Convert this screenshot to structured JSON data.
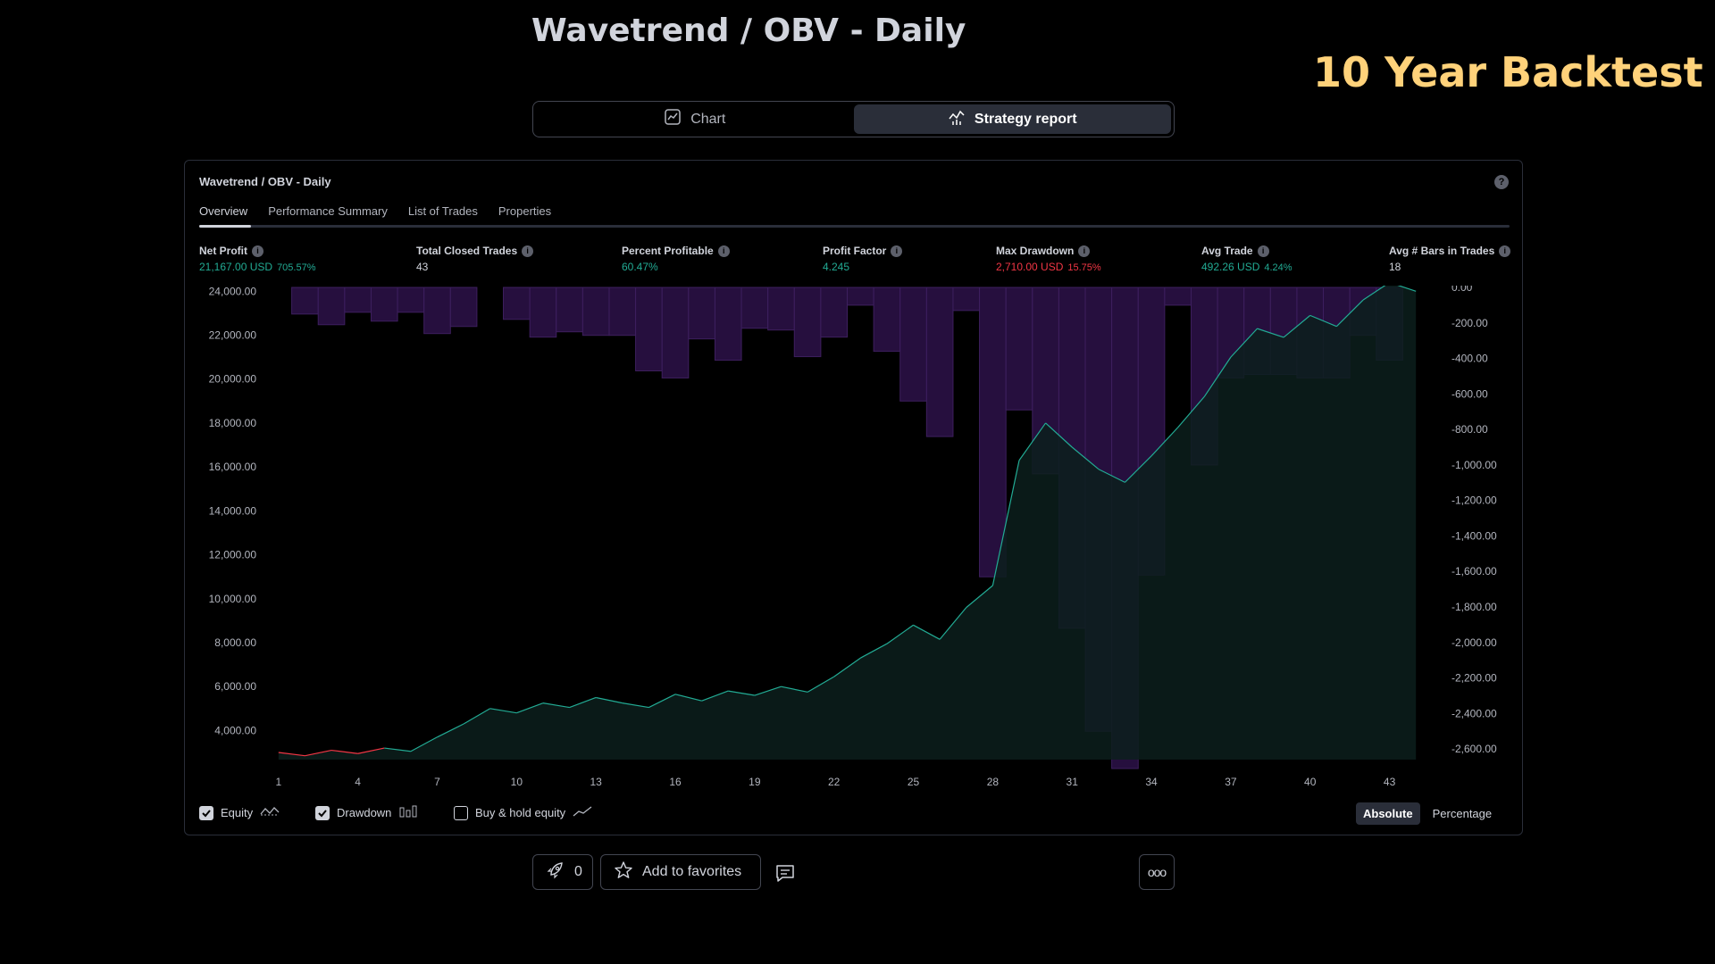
{
  "header": {
    "title": "Wavetrend / OBV - Daily",
    "badge": "10 Year Backtest"
  },
  "view_tabs": [
    {
      "label": "Chart",
      "active": false,
      "icon": "chart-icon"
    },
    {
      "label": "Strategy report",
      "active": true,
      "icon": "strategy-report-icon"
    }
  ],
  "panel": {
    "title": "Wavetrend / OBV - Daily",
    "help_icon": "?",
    "sub_tabs": [
      {
        "label": "Overview",
        "active": true
      },
      {
        "label": "Performance Summary",
        "active": false
      },
      {
        "label": "List of Trades",
        "active": false
      },
      {
        "label": "Properties",
        "active": false
      }
    ],
    "metrics": [
      {
        "label": "Net Profit",
        "value": "21,167.00 USD",
        "pct": "705.57%",
        "color": "green"
      },
      {
        "label": "Total Closed Trades",
        "value": "43",
        "pct": "",
        "color": "white"
      },
      {
        "label": "Percent Profitable",
        "value": "60.47%",
        "pct": "",
        "color": "green"
      },
      {
        "label": "Profit Factor",
        "value": "4.245",
        "pct": "",
        "color": "green"
      },
      {
        "label": "Max Drawdown",
        "value": "2,710.00 USD",
        "pct": "15.75%",
        "color": "red"
      },
      {
        "label": "Avg Trade",
        "value": "492.26 USD",
        "pct": "4.24%",
        "color": "green"
      },
      {
        "label": "Avg # Bars in Trades",
        "value": "18",
        "pct": "",
        "color": "white"
      }
    ],
    "legend": [
      {
        "label": "Equity",
        "checked": true,
        "icon": "equity-line-icon"
      },
      {
        "label": "Drawdown",
        "checked": true,
        "icon": "drawdown-bars-icon"
      },
      {
        "label": "Buy & hold equity",
        "checked": false,
        "icon": "buy-hold-line-icon"
      }
    ],
    "mode": {
      "absolute": "Absolute",
      "percentage": "Percentage",
      "active": "absolute"
    }
  },
  "actions": {
    "boost_count": "0",
    "favorites_label": "Add to favorites",
    "more_label": "ooo"
  },
  "colors": {
    "equity_line": "#22ab94",
    "equity_fill": "#0c1f1c",
    "drawdown_bar": "#2a1145",
    "drawdown_border": "#3d1f5e",
    "loss_segment": "#f23645",
    "badge": "#ffd27a"
  },
  "chart_data": {
    "type": "area",
    "x": [
      1,
      2,
      3,
      4,
      5,
      6,
      7,
      8,
      9,
      10,
      11,
      12,
      13,
      14,
      15,
      16,
      17,
      18,
      19,
      20,
      21,
      22,
      23,
      24,
      25,
      26,
      27,
      28,
      29,
      30,
      31,
      32,
      33,
      34,
      35,
      36,
      37,
      38,
      39,
      40,
      41,
      42,
      43,
      44
    ],
    "x_ticks": [
      "1",
      "4",
      "7",
      "10",
      "13",
      "16",
      "19",
      "22",
      "25",
      "28",
      "31",
      "34",
      "37",
      "40",
      "43"
    ],
    "series": [
      {
        "name": "Equity",
        "axis": "left",
        "values": [
          3000,
          2850,
          3100,
          2950,
          3200,
          3050,
          3700,
          4300,
          5000,
          4800,
          5250,
          5050,
          5500,
          5250,
          5050,
          5650,
          5350,
          5800,
          5600,
          6000,
          5750,
          6450,
          7300,
          7950,
          8800,
          8150,
          9600,
          10600,
          16300,
          18000,
          16900,
          15900,
          15300,
          16500,
          17800,
          19200,
          21000,
          22300,
          21900,
          22900,
          22400,
          23600,
          24400,
          24000
        ]
      },
      {
        "name": "Drawdown",
        "axis": "right",
        "values": [
          0,
          -150,
          -210,
          -140,
          -190,
          -140,
          -260,
          -220,
          0,
          -180,
          -280,
          -250,
          -270,
          -270,
          -470,
          -510,
          -290,
          -410,
          -230,
          -240,
          -390,
          -280,
          -100,
          -360,
          -640,
          -840,
          -130,
          -1630,
          -690,
          -1050,
          -1920,
          -2500,
          -2710,
          -1620,
          -100,
          -1000,
          -510,
          -490,
          -490,
          -510,
          -510,
          -270,
          -410,
          0
        ]
      }
    ],
    "ylabel_left": "",
    "ylabel_right": "",
    "y_left_ticks": [
      "24,000.00",
      "22,000.00",
      "20,000.00",
      "18,000.00",
      "16,000.00",
      "14,000.00",
      "12,000.00",
      "10,000.00",
      "8,000.00",
      "6,000.00",
      "4,000.00"
    ],
    "y_right_ticks": [
      "0.00",
      "-200.00",
      "-400.00",
      "-600.00",
      "-800.00",
      "-1,000.00",
      "-1,200.00",
      "-1,400.00",
      "-1,600.00",
      "-1,800.00",
      "-2,000.00",
      "-2,200.00",
      "-2,400.00",
      "-2,600.00"
    ],
    "ylim_left": [
      3000,
      24500
    ],
    "ylim_right": [
      -2710,
      0
    ],
    "grid": false,
    "legend": "bottom-left"
  }
}
